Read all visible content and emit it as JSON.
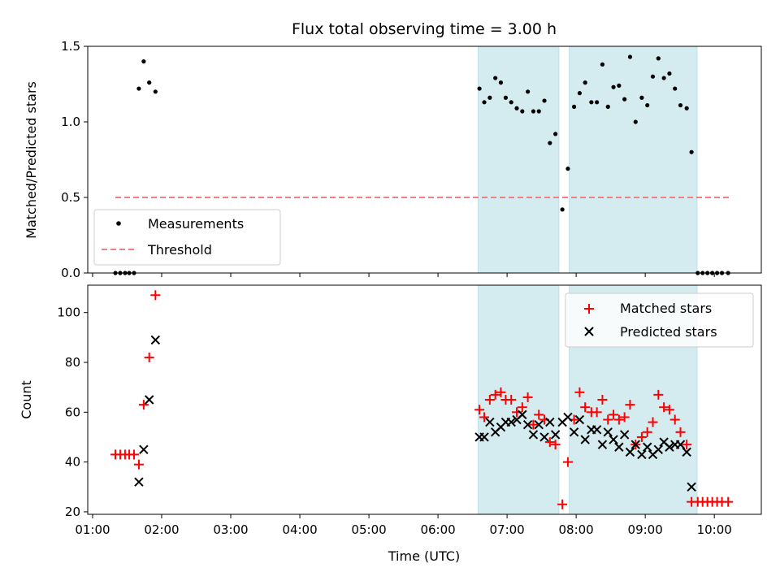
{
  "chart_data": {
    "title": "Flux total observing time = 3.00 h",
    "xlabel": "Time (UTC)",
    "x_ticks": [
      "01:00",
      "02:00",
      "03:00",
      "04:00",
      "05:00",
      "06:00",
      "07:00",
      "08:00",
      "09:00",
      "10:00"
    ],
    "x_range_hours": [
      0.93,
      10.68
    ],
    "shaded_intervals_hours": [
      [
        6.58,
        7.75
      ],
      [
        7.9,
        9.75
      ]
    ],
    "shade_color": "#d4ebf0",
    "top": {
      "type": "scatter",
      "ylabel": "Matched/Predicted stars",
      "ylim": [
        0,
        1.5
      ],
      "y_ticks": [
        "0.0",
        "0.5",
        "1.0",
        "1.5"
      ],
      "threshold": {
        "name": "Threshold",
        "value": 0.5,
        "x_start": 1.33,
        "x_end": 10.25,
        "color": "#f08080"
      },
      "series": {
        "name": "Measurements",
        "color": "#000000",
        "points": [
          [
            1.33,
            0
          ],
          [
            1.4,
            0
          ],
          [
            1.47,
            0
          ],
          [
            1.53,
            0
          ],
          [
            1.6,
            0
          ],
          [
            1.67,
            1.22
          ],
          [
            1.74,
            1.4
          ],
          [
            1.82,
            1.26
          ],
          [
            1.91,
            1.2
          ],
          [
            6.6,
            1.22
          ],
          [
            6.67,
            1.13
          ],
          [
            6.75,
            1.16
          ],
          [
            6.83,
            1.29
          ],
          [
            6.91,
            1.26
          ],
          [
            6.98,
            1.16
          ],
          [
            7.06,
            1.13
          ],
          [
            7.14,
            1.09
          ],
          [
            7.22,
            1.07
          ],
          [
            7.3,
            1.2
          ],
          [
            7.38,
            1.07
          ],
          [
            7.46,
            1.07
          ],
          [
            7.54,
            1.14
          ],
          [
            7.62,
            0.86
          ],
          [
            7.7,
            0.92
          ],
          [
            7.8,
            0.42
          ],
          [
            7.88,
            0.69
          ],
          [
            7.97,
            1.1
          ],
          [
            8.05,
            1.19
          ],
          [
            8.13,
            1.26
          ],
          [
            8.22,
            1.13
          ],
          [
            8.3,
            1.13
          ],
          [
            8.38,
            1.38
          ],
          [
            8.46,
            1.1
          ],
          [
            8.54,
            1.23
          ],
          [
            8.62,
            1.24
          ],
          [
            8.7,
            1.15
          ],
          [
            8.78,
            1.43
          ],
          [
            8.86,
            1.0
          ],
          [
            8.95,
            1.16
          ],
          [
            9.03,
            1.11
          ],
          [
            9.11,
            1.3
          ],
          [
            9.19,
            1.42
          ],
          [
            9.27,
            1.29
          ],
          [
            9.35,
            1.32
          ],
          [
            9.43,
            1.22
          ],
          [
            9.51,
            1.11
          ],
          [
            9.6,
            1.09
          ],
          [
            9.67,
            0.8
          ],
          [
            9.76,
            0
          ],
          [
            9.83,
            0
          ],
          [
            9.9,
            0
          ],
          [
            9.97,
            0
          ],
          [
            10.04,
            0
          ],
          [
            10.11,
            0
          ],
          [
            10.2,
            0
          ]
        ]
      },
      "legend": [
        "Measurements",
        "Threshold"
      ],
      "legend_placement": "lower-left"
    },
    "bottom": {
      "type": "scatter",
      "ylabel": "Count",
      "ylim": [
        19,
        111
      ],
      "y_ticks": [
        "20",
        "40",
        "60",
        "80",
        "100"
      ],
      "series": [
        {
          "name": "Matched stars",
          "marker": "plus",
          "color": "#ff0000",
          "points": [
            [
              1.33,
              43
            ],
            [
              1.4,
              43
            ],
            [
              1.47,
              43
            ],
            [
              1.53,
              43
            ],
            [
              1.6,
              43
            ],
            [
              1.67,
              39
            ],
            [
              1.74,
              63
            ],
            [
              1.82,
              82
            ],
            [
              1.91,
              107
            ],
            [
              6.6,
              61
            ],
            [
              6.67,
              58
            ],
            [
              6.75,
              65
            ],
            [
              6.83,
              67
            ],
            [
              6.91,
              68
            ],
            [
              6.98,
              65
            ],
            [
              7.06,
              65
            ],
            [
              7.14,
              60
            ],
            [
              7.22,
              62
            ],
            [
              7.3,
              66
            ],
            [
              7.38,
              55
            ],
            [
              7.46,
              59
            ],
            [
              7.54,
              57
            ],
            [
              7.62,
              48
            ],
            [
              7.7,
              47
            ],
            [
              7.8,
              23
            ],
            [
              7.88,
              40
            ],
            [
              7.97,
              57
            ],
            [
              8.05,
              68
            ],
            [
              8.13,
              62
            ],
            [
              8.22,
              60
            ],
            [
              8.3,
              60
            ],
            [
              8.38,
              65
            ],
            [
              8.46,
              57
            ],
            [
              8.54,
              59
            ],
            [
              8.62,
              57
            ],
            [
              8.7,
              58
            ],
            [
              8.78,
              63
            ],
            [
              8.86,
              47
            ],
            [
              8.95,
              50
            ],
            [
              9.03,
              52
            ],
            [
              9.11,
              56
            ],
            [
              9.19,
              67
            ],
            [
              9.27,
              62
            ],
            [
              9.35,
              61
            ],
            [
              9.43,
              57
            ],
            [
              9.51,
              52
            ],
            [
              9.6,
              47
            ],
            [
              9.67,
              24
            ],
            [
              9.76,
              24
            ],
            [
              9.83,
              24
            ],
            [
              9.9,
              24
            ],
            [
              9.97,
              24
            ],
            [
              10.04,
              24
            ],
            [
              10.11,
              24
            ],
            [
              10.2,
              24
            ]
          ]
        },
        {
          "name": "Predicted stars",
          "marker": "x",
          "color": "#000000",
          "points": [
            [
              1.67,
              32
            ],
            [
              1.74,
              45
            ],
            [
              1.82,
              65
            ],
            [
              1.91,
              89
            ],
            [
              6.6,
              50
            ],
            [
              6.67,
              50
            ],
            [
              6.75,
              56
            ],
            [
              6.83,
              52
            ],
            [
              6.91,
              54
            ],
            [
              6.98,
              56
            ],
            [
              7.06,
              56
            ],
            [
              7.14,
              57
            ],
            [
              7.22,
              59
            ],
            [
              7.3,
              55
            ],
            [
              7.38,
              51
            ],
            [
              7.46,
              55
            ],
            [
              7.54,
              50
            ],
            [
              7.62,
              56
            ],
            [
              7.7,
              51
            ],
            [
              7.8,
              56
            ],
            [
              7.88,
              58
            ],
            [
              7.97,
              52
            ],
            [
              8.05,
              57
            ],
            [
              8.13,
              49
            ],
            [
              8.22,
              53
            ],
            [
              8.3,
              53
            ],
            [
              8.38,
              47
            ],
            [
              8.46,
              52
            ],
            [
              8.54,
              49
            ],
            [
              8.62,
              46
            ],
            [
              8.7,
              51
            ],
            [
              8.78,
              44
            ],
            [
              8.86,
              47
            ],
            [
              8.95,
              43
            ],
            [
              9.03,
              46
            ],
            [
              9.11,
              43
            ],
            [
              9.19,
              45
            ],
            [
              9.27,
              48
            ],
            [
              9.35,
              46
            ],
            [
              9.43,
              47
            ],
            [
              9.51,
              47
            ],
            [
              9.6,
              44
            ],
            [
              9.67,
              30
            ]
          ]
        }
      ],
      "legend": [
        "Matched stars",
        "Predicted stars"
      ],
      "legend_placement": "upper-right"
    }
  }
}
